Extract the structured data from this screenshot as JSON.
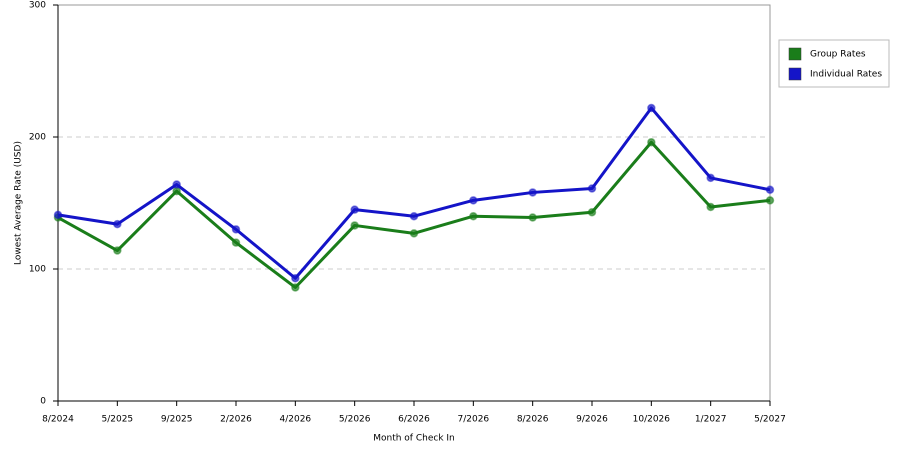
{
  "chart_data": {
    "type": "line",
    "x_label": "Month of Check In",
    "y_label": "Lowest Average Rate (USD)",
    "categories": [
      "8/2024",
      "5/2025",
      "9/2025",
      "2/2026",
      "4/2026",
      "5/2026",
      "6/2026",
      "7/2026",
      "8/2026",
      "9/2026",
      "10/2026",
      "1/2027",
      "5/2027"
    ],
    "series": [
      {
        "name": "Group Rates",
        "color": "#1a7d1a",
        "values": [
          139,
          114,
          159,
          120,
          86,
          133,
          127,
          140,
          139,
          143,
          196,
          147,
          152
        ]
      },
      {
        "name": "Individual Rates",
        "color": "#1414c8",
        "values": [
          141,
          134,
          164,
          130,
          93,
          145,
          140,
          152,
          158,
          161,
          222,
          169,
          160
        ]
      }
    ],
    "ylim": [
      0,
      300
    ],
    "yticks": [
      0,
      100,
      200,
      300
    ],
    "grid": true,
    "legend": "right"
  }
}
